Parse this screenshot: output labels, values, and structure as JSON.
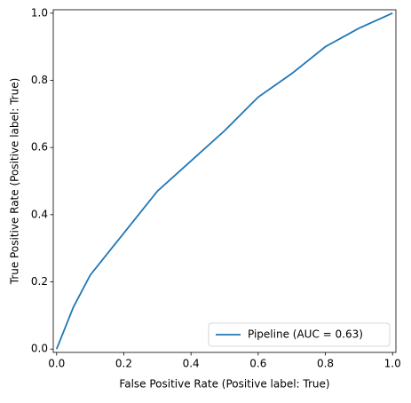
{
  "chart_data": {
    "type": "line",
    "xlabel": "False Positive Rate (Positive label: True)",
    "ylabel": "True Positive Rate (Positive label: True)",
    "x": [
      0,
      0.02,
      0.05,
      0.1,
      0.2,
      0.3,
      0.4,
      0.5,
      0.6,
      0.7,
      0.8,
      0.9,
      1.0
    ],
    "series": [
      {
        "name": "Pipeline (AUC = 0.63)",
        "color": "#1f77b4",
        "values": [
          0,
          0.05,
          0.125,
          0.22,
          0.345,
          0.47,
          0.56,
          0.65,
          0.75,
          0.82,
          0.9,
          0.955,
          1.0
        ]
      }
    ],
    "xlim": [
      -0.01,
      1.01
    ],
    "ylim": [
      -0.01,
      1.01
    ],
    "xticks": [
      {
        "value": 0,
        "label": "0.0"
      },
      0.2,
      0.4,
      0.6,
      0.8,
      {
        "value": 1,
        "label": "1.0"
      }
    ],
    "yticks": [
      {
        "value": 0,
        "label": "0.0"
      },
      0.2,
      0.4,
      0.6,
      0.8,
      {
        "value": 1,
        "label": "1.0"
      }
    ],
    "grid": false,
    "legend": "lower right"
  }
}
